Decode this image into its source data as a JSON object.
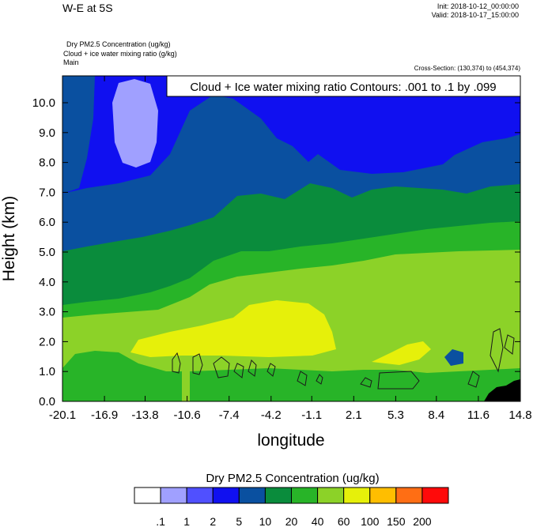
{
  "header": {
    "title": "W-E at 5S",
    "init": "Init: 2018-10-12_00:00:00",
    "valid": "Valid: 2018-10-17_15:00:00",
    "field_lines": [
      "Dry PM2.5 Concentration   (ug/kg)",
      "Cloud + ice water mixing ratio   (g/kg)",
      "Main"
    ],
    "cross_section": "Cross-Section: (130,374) to (454,374)"
  },
  "chart_data": {
    "type": "heatmap",
    "xlabel": "longitude",
    "ylabel": "Height (km)",
    "x_ticks": [
      "-20.1",
      "-16.9",
      "-13.8",
      "-10.6",
      "-7.4",
      "-4.2",
      "-1.1",
      "2.1",
      "5.3",
      "8.4",
      "11.6",
      "14.8"
    ],
    "y_ticks": [
      "0.0",
      "1.0",
      "2.0",
      "3.0",
      "4.0",
      "5.0",
      "6.0",
      "7.0",
      "8.0",
      "9.0",
      "10.0"
    ],
    "xlim": [
      -20.1,
      14.8
    ],
    "ylim": [
      0,
      10.9
    ],
    "contour_label": "Cloud + Ice water mixing ratio Contours: .001 to .1 by .099",
    "colorbar": {
      "title": "Dry PM2.5 Concentration  (ug/kg)",
      "labels": [
        ".1",
        "1",
        "2",
        "5",
        "10",
        "20",
        "40",
        "60",
        "100",
        "150",
        "200"
      ],
      "colors": [
        "#ffffff",
        "#a0a0ff",
        "#5050ff",
        "#1010f0",
        "#0a50a0",
        "#0a8c3c",
        "#28b428",
        "#8cd228",
        "#e6f00a",
        "#ffbe00",
        "#ff6e14",
        "#ff0a0a"
      ]
    }
  }
}
